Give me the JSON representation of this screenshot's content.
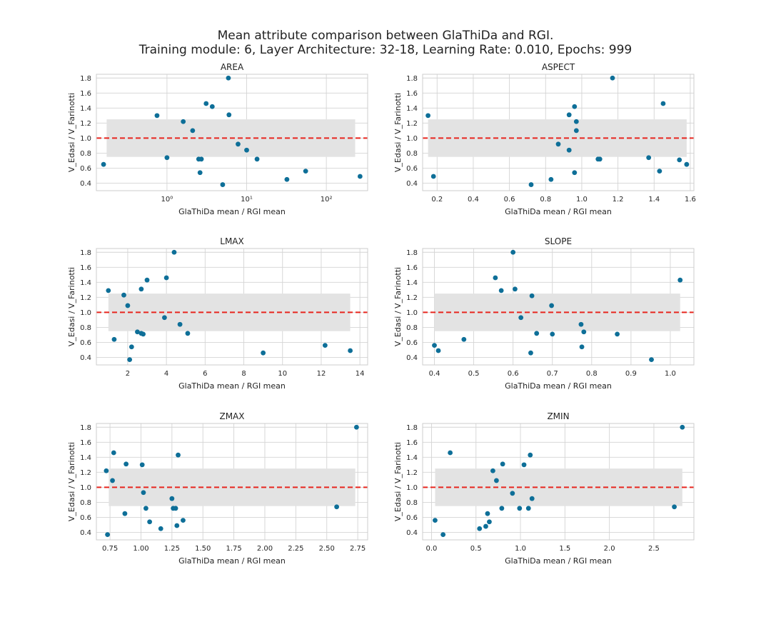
{
  "figure": {
    "title_line1": "Mean attribute comparison between GlaThiDa and RGI.",
    "title_line2": "Training module: 6, Layer Architecture: 32-18, Learning Rate: 0.010, Epochs: 999"
  },
  "colors": {
    "points": "#0e6f98",
    "reference_line": "#e8261f",
    "band": "#e3e3e3",
    "grid": "#d4d4d4",
    "frame": "#cccccc"
  },
  "chart_data": [
    {
      "type": "scatter",
      "title": "AREA",
      "xlabel": "GlaThiDa mean / RGI mean",
      "ylabel": "V_Edasi / V_Farinotti",
      "xscale": "log",
      "xlim": [
        0.13,
        330
      ],
      "ylim": [
        0.3,
        1.85
      ],
      "grid": true,
      "xticks": [
        1,
        10,
        100
      ],
      "xtick_labels": [
        "10⁰",
        "10¹",
        "10²"
      ],
      "yticks": [
        0.4,
        0.6,
        0.8,
        1.0,
        1.2,
        1.4,
        1.6,
        1.8
      ],
      "band": [
        0.75,
        1.25
      ],
      "band_xlim": [
        0.175,
        230
      ],
      "reference_y": 1.0,
      "points": [
        [
          0.16,
          0.65
        ],
        [
          0.75,
          1.3
        ],
        [
          1.0,
          0.74
        ],
        [
          1.6,
          1.22
        ],
        [
          2.1,
          1.1
        ],
        [
          2.5,
          0.72
        ],
        [
          2.6,
          0.54
        ],
        [
          2.7,
          0.72
        ],
        [
          3.1,
          1.46
        ],
        [
          3.7,
          1.42
        ],
        [
          5.0,
          0.38
        ],
        [
          5.9,
          1.8
        ],
        [
          6.0,
          1.31
        ],
        [
          7.8,
          0.92
        ],
        [
          10.0,
          0.84
        ],
        [
          13.5,
          0.72
        ],
        [
          32.0,
          0.45
        ],
        [
          55.0,
          0.56
        ],
        [
          265.0,
          0.49
        ]
      ]
    },
    {
      "type": "scatter",
      "title": "ASPECT",
      "xlabel": "GlaThiDa mean / RGI mean",
      "ylabel": "V_Edasi / V_Farinotti",
      "xscale": "linear",
      "xlim": [
        0.12,
        1.62
      ],
      "ylim": [
        0.3,
        1.85
      ],
      "grid": true,
      "xticks": [
        0.2,
        0.4,
        0.6,
        0.8,
        1.0,
        1.2,
        1.4,
        1.6
      ],
      "xtick_labels": [
        "0.2",
        "0.4",
        "0.6",
        "0.8",
        "1.0",
        "1.2",
        "1.4",
        "1.6"
      ],
      "yticks": [
        0.4,
        0.6,
        0.8,
        1.0,
        1.2,
        1.4,
        1.6,
        1.8
      ],
      "band": [
        0.75,
        1.25
      ],
      "band_xlim": [
        0.15,
        1.58
      ],
      "reference_y": 1.0,
      "points": [
        [
          0.15,
          1.3
        ],
        [
          0.18,
          0.49
        ],
        [
          0.72,
          0.38
        ],
        [
          0.83,
          0.45
        ],
        [
          0.87,
          0.92
        ],
        [
          0.93,
          1.31
        ],
        [
          0.93,
          0.84
        ],
        [
          0.96,
          1.42
        ],
        [
          0.96,
          0.54
        ],
        [
          0.97,
          1.22
        ],
        [
          0.97,
          1.1
        ],
        [
          1.09,
          0.72
        ],
        [
          1.1,
          0.72
        ],
        [
          1.17,
          1.8
        ],
        [
          1.37,
          0.74
        ],
        [
          1.43,
          0.56
        ],
        [
          1.45,
          1.46
        ],
        [
          1.54,
          0.71
        ],
        [
          1.58,
          0.65
        ]
      ]
    },
    {
      "type": "scatter",
      "title": "LMAX",
      "xlabel": "GlaThiDa mean / RGI mean",
      "ylabel": "V_Edasi / V_Farinotti",
      "xscale": "linear",
      "xlim": [
        0.38,
        14.4
      ],
      "ylim": [
        0.3,
        1.85
      ],
      "grid": true,
      "xticks": [
        2,
        4,
        6,
        8,
        10,
        12,
        14
      ],
      "xtick_labels": [
        "2",
        "4",
        "6",
        "8",
        "10",
        "12",
        "14"
      ],
      "yticks": [
        0.4,
        0.6,
        0.8,
        1.0,
        1.2,
        1.4,
        1.6,
        1.8
      ],
      "band": [
        0.75,
        1.25
      ],
      "band_xlim": [
        1.0,
        13.5
      ],
      "reference_y": 1.0,
      "points": [
        [
          1.0,
          1.29
        ],
        [
          1.3,
          0.64
        ],
        [
          1.8,
          1.23
        ],
        [
          2.0,
          1.09
        ],
        [
          2.1,
          0.37
        ],
        [
          2.2,
          0.54
        ],
        [
          2.5,
          0.74
        ],
        [
          2.7,
          1.31
        ],
        [
          2.7,
          0.72
        ],
        [
          2.8,
          0.71
        ],
        [
          3.0,
          1.43
        ],
        [
          3.9,
          0.93
        ],
        [
          4.0,
          1.46
        ],
        [
          4.4,
          1.8
        ],
        [
          4.7,
          0.84
        ],
        [
          5.1,
          0.72
        ],
        [
          9.0,
          0.46
        ],
        [
          12.2,
          0.56
        ],
        [
          13.5,
          0.49
        ]
      ]
    },
    {
      "type": "scatter",
      "title": "SLOPE",
      "xlabel": "GlaThiDa mean / RGI mean",
      "ylabel": "V_Edasi / V_Farinotti",
      "xscale": "linear",
      "xlim": [
        0.37,
        1.06
      ],
      "ylim": [
        0.3,
        1.85
      ],
      "grid": true,
      "xticks": [
        0.4,
        0.5,
        0.6,
        0.7,
        0.8,
        0.9,
        1.0
      ],
      "xtick_labels": [
        "0.4",
        "0.5",
        "0.6",
        "0.7",
        "0.8",
        "0.9",
        "1.0"
      ],
      "yticks": [
        0.4,
        0.6,
        0.8,
        1.0,
        1.2,
        1.4,
        1.6,
        1.8
      ],
      "band": [
        0.75,
        1.25
      ],
      "band_xlim": [
        0.4,
        1.025
      ],
      "reference_y": 1.0,
      "points": [
        [
          0.4,
          0.56
        ],
        [
          0.41,
          0.49
        ],
        [
          0.475,
          0.64
        ],
        [
          0.555,
          1.46
        ],
        [
          0.57,
          1.29
        ],
        [
          0.6,
          1.8
        ],
        [
          0.605,
          1.31
        ],
        [
          0.62,
          0.93
        ],
        [
          0.645,
          0.46
        ],
        [
          0.648,
          1.22
        ],
        [
          0.66,
          0.72
        ],
        [
          0.698,
          1.09
        ],
        [
          0.7,
          0.71
        ],
        [
          0.773,
          0.84
        ],
        [
          0.775,
          0.54
        ],
        [
          0.78,
          0.74
        ],
        [
          0.865,
          0.71
        ],
        [
          0.952,
          0.37
        ],
        [
          1.025,
          1.43
        ]
      ]
    },
    {
      "type": "scatter",
      "title": "ZMAX",
      "xlabel": "GlaThiDa mean / RGI mean",
      "ylabel": "V_Edasi / V_Farinotti",
      "xscale": "linear",
      "xlim": [
        0.64,
        2.83
      ],
      "ylim": [
        0.3,
        1.85
      ],
      "grid": true,
      "xticks": [
        0.75,
        1.0,
        1.25,
        1.5,
        1.75,
        2.0,
        2.25,
        2.5,
        2.75
      ],
      "xtick_labels": [
        "0.75",
        "1.00",
        "1.25",
        "1.50",
        "1.75",
        "2.00",
        "2.25",
        "2.50",
        "2.75"
      ],
      "yticks": [
        0.4,
        0.6,
        0.8,
        1.0,
        1.2,
        1.4,
        1.6,
        1.8
      ],
      "band": [
        0.75,
        1.25
      ],
      "band_xlim": [
        0.74,
        2.73
      ],
      "reference_y": 1.0,
      "points": [
        [
          0.72,
          1.22
        ],
        [
          0.73,
          0.37
        ],
        [
          0.77,
          1.09
        ],
        [
          0.78,
          1.46
        ],
        [
          0.87,
          0.65
        ],
        [
          0.88,
          1.31
        ],
        [
          1.01,
          1.3
        ],
        [
          1.02,
          0.93
        ],
        [
          1.04,
          0.72
        ],
        [
          1.07,
          0.54
        ],
        [
          1.16,
          0.45
        ],
        [
          1.25,
          0.85
        ],
        [
          1.26,
          0.72
        ],
        [
          1.28,
          0.72
        ],
        [
          1.29,
          0.49
        ],
        [
          1.3,
          1.43
        ],
        [
          1.34,
          0.56
        ],
        [
          2.58,
          0.74
        ],
        [
          2.74,
          1.8
        ]
      ]
    },
    {
      "type": "scatter",
      "title": "ZMIN",
      "xlabel": "GlaThiDa mean / RGI mean",
      "ylabel": "V_Edasi / V_Farinotti",
      "xscale": "linear",
      "xlim": [
        -0.1,
        2.95
      ],
      "ylim": [
        0.3,
        1.85
      ],
      "grid": true,
      "xticks": [
        0.0,
        0.5,
        1.0,
        1.5,
        2.0,
        2.5
      ],
      "xtick_labels": [
        "0.0",
        "0.5",
        "1.0",
        "1.5",
        "2.0",
        "2.5"
      ],
      "yticks": [
        0.4,
        0.6,
        0.8,
        1.0,
        1.2,
        1.4,
        1.6,
        1.8
      ],
      "band": [
        0.75,
        1.25
      ],
      "band_xlim": [
        0.04,
        2.82
      ],
      "reference_y": 1.0,
      "points": [
        [
          0.04,
          0.56
        ],
        [
          0.13,
          0.37
        ],
        [
          0.21,
          1.46
        ],
        [
          0.54,
          0.45
        ],
        [
          0.61,
          0.48
        ],
        [
          0.63,
          0.65
        ],
        [
          0.65,
          0.54
        ],
        [
          0.69,
          1.22
        ],
        [
          0.73,
          1.09
        ],
        [
          0.79,
          0.72
        ],
        [
          0.8,
          1.31
        ],
        [
          0.91,
          0.92
        ],
        [
          0.99,
          0.72
        ],
        [
          1.04,
          1.3
        ],
        [
          1.09,
          0.72
        ],
        [
          1.11,
          1.43
        ],
        [
          1.13,
          0.85
        ],
        [
          2.73,
          0.74
        ],
        [
          2.82,
          1.8
        ]
      ]
    }
  ]
}
